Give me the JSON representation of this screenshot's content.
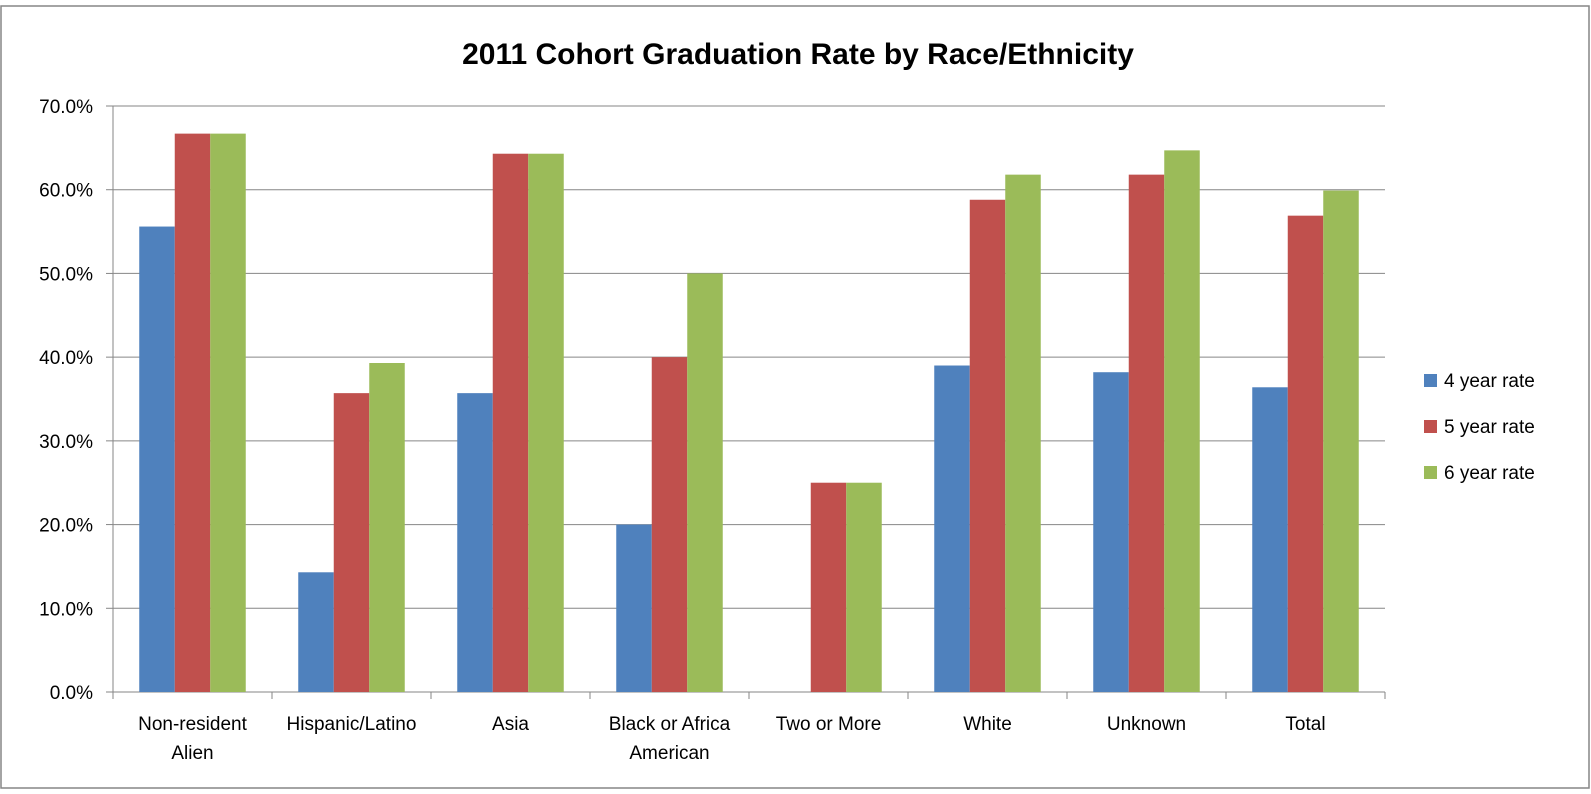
{
  "chart_data": {
    "type": "bar",
    "title": "2011 Cohort Graduation Rate by Race/Ethnicity",
    "xlabel": "",
    "ylabel": "",
    "categories": [
      [
        "Non-resident",
        "Alien"
      ],
      [
        "Hispanic/Latino"
      ],
      [
        "Asia"
      ],
      [
        "Black or Africa",
        "American"
      ],
      [
        "Two or More"
      ],
      [
        "White"
      ],
      [
        "Unknown"
      ],
      [
        "Total"
      ]
    ],
    "series": [
      {
        "name": "4 year rate",
        "color": "#4F81BD",
        "values": [
          55.6,
          14.3,
          35.7,
          20.0,
          0.0,
          39.0,
          38.2,
          36.4
        ]
      },
      {
        "name": "5 year rate",
        "color": "#C0504D",
        "values": [
          66.7,
          35.7,
          64.3,
          40.0,
          25.0,
          58.8,
          61.8,
          56.9
        ]
      },
      {
        "name": "6 year rate",
        "color": "#9BBB59",
        "values": [
          66.7,
          39.3,
          64.3,
          50.0,
          25.0,
          61.8,
          64.7,
          59.9
        ]
      }
    ],
    "ylim": [
      0,
      70
    ],
    "yticks": [
      "0.0%",
      "10.0%",
      "20.0%",
      "30.0%",
      "40.0%",
      "50.0%",
      "60.0%",
      "70.0%"
    ],
    "ytick_values": [
      0,
      10,
      20,
      30,
      40,
      50,
      60,
      70
    ],
    "grid": true,
    "legend_position": "right"
  }
}
